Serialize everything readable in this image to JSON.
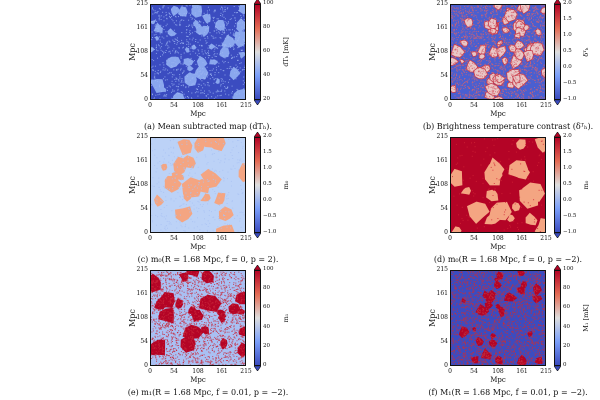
{
  "axis_label": "Mpc",
  "axis_ticks": [
    "0",
    "54",
    "108",
    "161",
    "215"
  ],
  "chart_data": [
    {
      "panel": "a",
      "type": "heatmap",
      "caption": "(a) Mean subtracted map (dTₕ).",
      "colorbar_label": "dTₕ [mK]",
      "colorbar_ticks": [
        "100",
        "80",
        "60",
        "40",
        "20"
      ],
      "colormap": "coolwarm",
      "fill_fraction": 0.35,
      "xlim": [
        0,
        215
      ],
      "ylim": [
        0,
        215
      ]
    },
    {
      "panel": "b",
      "type": "heatmap",
      "caption": "(b) Brightness temperature contrast (δᵀₕ).",
      "colorbar_label": "δᵀₕ",
      "colorbar_ticks": [
        "2.0",
        "1.5",
        "1.0",
        "0.5",
        "0.0",
        "−0.5",
        "−1.0"
      ],
      "colormap": "coolwarm",
      "fill_fraction": 0.55,
      "xlim": [
        0,
        215
      ],
      "ylim": [
        0,
        215
      ]
    },
    {
      "panel": "c",
      "type": "heatmap",
      "caption": "(c) m₀(R = 1.68 Mpc, f = 0, p = 2).",
      "colorbar_label": "m₀",
      "colorbar_ticks": [
        "2.0",
        "1.5",
        "1.0",
        "0.5",
        "0.0",
        "−0.5",
        "−1.0"
      ],
      "colormap": "coolwarm",
      "fill_fraction": 0.25,
      "xlim": [
        0,
        215
      ],
      "ylim": [
        0,
        215
      ]
    },
    {
      "panel": "d",
      "type": "heatmap",
      "caption": "(d) m₀(R = 1.68 Mpc, f = 0, p = −2).",
      "colorbar_label": "m₀",
      "colorbar_ticks": [
        "2.0",
        "1.5",
        "1.0",
        "0.5",
        "0.0",
        "−0.5",
        "−1.0"
      ],
      "colormap": "coolwarm",
      "fill_fraction": 0.78,
      "xlim": [
        0,
        215
      ],
      "ylim": [
        0,
        215
      ]
    },
    {
      "panel": "e",
      "type": "heatmap",
      "caption": "(e) m₁(R = 1.68 Mpc, f = 0.01, p = −2).",
      "colorbar_label": "m₁",
      "colorbar_ticks": [
        "100",
        "80",
        "60",
        "40",
        "20",
        "0"
      ],
      "colormap": "coolwarm",
      "fill_fraction": 0.3,
      "xlim": [
        0,
        215
      ],
      "ylim": [
        0,
        215
      ]
    },
    {
      "panel": "f",
      "type": "heatmap",
      "caption": "(f) M₁(R = 1.68 Mpc, f = 0.01, p = −2).",
      "colorbar_label": "M₁ [mK]",
      "colorbar_ticks": [
        "100",
        "80",
        "60",
        "40",
        "20",
        "0"
      ],
      "colormap": "coolwarm",
      "fill_fraction": 0.5,
      "xlim": [
        0,
        215
      ],
      "ylim": [
        0,
        215
      ]
    }
  ]
}
